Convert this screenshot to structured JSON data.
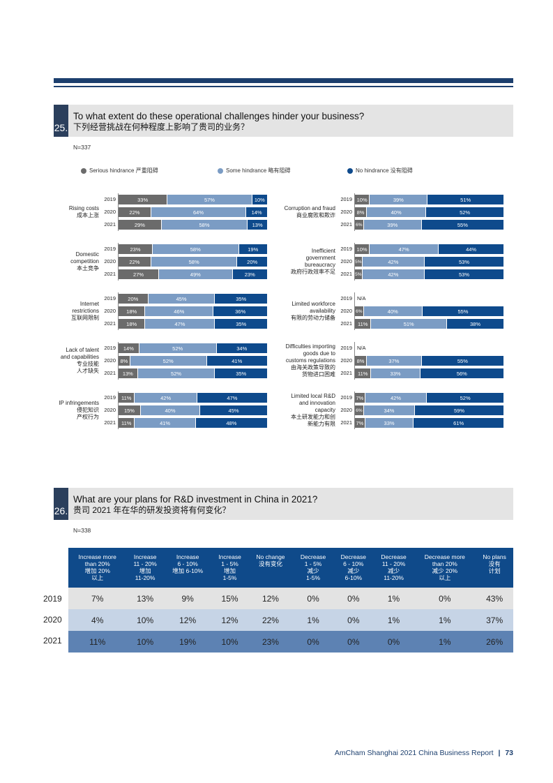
{
  "q25": {
    "number": "25.",
    "title_en": "To what extent do these operational challenges hinder your business?",
    "title_cn": "下列经营挑战在何种程度上影响了贵司的业务？",
    "n": "N=337",
    "legend": [
      {
        "label": "Serious hindrance  严重阻碍",
        "color": "#6b6b6b"
      },
      {
        "label": "Some hindrance  略有阻碍",
        "color": "#7b9cc4"
      },
      {
        "label": "No hindrance  没有阻碍",
        "color": "#0e4a8c"
      }
    ]
  },
  "chart_data": [
    {
      "type": "bar",
      "stacked": true,
      "title": "Rising costs 成本上涨",
      "categories": [
        "2019",
        "2020",
        "2021"
      ],
      "series": [
        {
          "name": "Serious hindrance",
          "values": [
            33,
            22,
            29
          ]
        },
        {
          "name": "Some hindrance",
          "values": [
            57,
            64,
            58
          ]
        },
        {
          "name": "No hindrance",
          "values": [
            10,
            14,
            13
          ]
        }
      ]
    },
    {
      "type": "bar",
      "stacked": true,
      "title": "Corruption and fraud 商业腐败和欺诈",
      "categories": [
        "2019",
        "2020",
        "2021"
      ],
      "series": [
        {
          "name": "Serious hindrance",
          "values": [
            10,
            8,
            6
          ]
        },
        {
          "name": "Some hindrance",
          "values": [
            39,
            40,
            39
          ]
        },
        {
          "name": "No hindrance",
          "values": [
            51,
            52,
            55
          ]
        }
      ]
    },
    {
      "type": "bar",
      "stacked": true,
      "title": "Domestic competition 本土竞争",
      "categories": [
        "2019",
        "2020",
        "2021"
      ],
      "series": [
        {
          "name": "Serious hindrance",
          "values": [
            23,
            22,
            27
          ]
        },
        {
          "name": "Some hindrance",
          "values": [
            58,
            58,
            49
          ]
        },
        {
          "name": "No hindrance",
          "values": [
            19,
            20,
            23
          ]
        }
      ]
    },
    {
      "type": "bar",
      "stacked": true,
      "title": "Inefficient government bureaucracy 政府行政效率不足",
      "categories": [
        "2019",
        "2020",
        "2021"
      ],
      "series": [
        {
          "name": "Serious hindrance",
          "values": [
            10,
            5,
            5
          ]
        },
        {
          "name": "Some hindrance",
          "values": [
            47,
            42,
            42
          ]
        },
        {
          "name": "No hindrance",
          "values": [
            44,
            53,
            53
          ]
        }
      ]
    },
    {
      "type": "bar",
      "stacked": true,
      "title": "Internet restrictions 互联网限制",
      "categories": [
        "2019",
        "2020",
        "2021"
      ],
      "series": [
        {
          "name": "Serious hindrance",
          "values": [
            20,
            18,
            18
          ]
        },
        {
          "name": "Some hindrance",
          "values": [
            45,
            46,
            47
          ]
        },
        {
          "name": "No hindrance",
          "values": [
            35,
            36,
            35
          ]
        }
      ]
    },
    {
      "type": "bar",
      "stacked": true,
      "title": "Limited workforce availability 有限的劳动力储备",
      "categories": [
        "2019",
        "2020",
        "2021"
      ],
      "series": [
        {
          "name": "Serious hindrance",
          "values": [
            null,
            6,
            11
          ]
        },
        {
          "name": "Some hindrance",
          "values": [
            null,
            40,
            51
          ]
        },
        {
          "name": "No hindrance",
          "values": [
            null,
            55,
            38
          ]
        }
      ]
    },
    {
      "type": "bar",
      "stacked": true,
      "title": "Lack of talent and capabilities 专业技能人才缺失",
      "categories": [
        "2019",
        "2020",
        "2021"
      ],
      "series": [
        {
          "name": "Serious hindrance",
          "values": [
            14,
            8,
            13
          ]
        },
        {
          "name": "Some hindrance",
          "values": [
            52,
            52,
            52
          ]
        },
        {
          "name": "No hindrance",
          "values": [
            34,
            41,
            35
          ]
        }
      ]
    },
    {
      "type": "bar",
      "stacked": true,
      "title": "Difficulties importing goods due to customs regulations 由海关政策导致的货物进口困难",
      "categories": [
        "2019",
        "2020",
        "2021"
      ],
      "series": [
        {
          "name": "Serious hindrance",
          "values": [
            null,
            8,
            11
          ]
        },
        {
          "name": "Some hindrance",
          "values": [
            null,
            37,
            33
          ]
        },
        {
          "name": "No hindrance",
          "values": [
            null,
            55,
            56
          ]
        }
      ]
    },
    {
      "type": "bar",
      "stacked": true,
      "title": "IP infringements 侵犯知识产权行为",
      "categories": [
        "2019",
        "2020",
        "2021"
      ],
      "series": [
        {
          "name": "Serious hindrance",
          "values": [
            11,
            15,
            11
          ]
        },
        {
          "name": "Some hindrance",
          "values": [
            42,
            40,
            41
          ]
        },
        {
          "name": "No hindrance",
          "values": [
            47,
            45,
            48
          ]
        }
      ]
    },
    {
      "type": "bar",
      "stacked": true,
      "title": "Limited local R&D and innovation capacity 本土研发能力和创新能力有限",
      "categories": [
        "2019",
        "2020",
        "2021"
      ],
      "series": [
        {
          "name": "Serious hindrance",
          "values": [
            7,
            6,
            7
          ]
        },
        {
          "name": "Some hindrance",
          "values": [
            42,
            34,
            33
          ]
        },
        {
          "name": "No hindrance",
          "values": [
            52,
            59,
            61
          ]
        }
      ]
    },
    {
      "type": "table",
      "title": "What are your plans for R&D investment in China in 2021?",
      "columns": [
        "Increase more than 20%",
        "Increase 11 - 20%",
        "Increase 6 - 10%",
        "Increase 1 - 5%",
        "No change",
        "Decrease 1 - 5%",
        "Decrease 6 - 10%",
        "Decrease 11 - 20%",
        "Decrease more than 20%",
        "No plans"
      ],
      "rows": [
        {
          "year": "2019",
          "values": [
            7,
            13,
            9,
            15,
            12,
            0,
            0,
            1,
            0,
            43
          ]
        },
        {
          "year": "2020",
          "values": [
            4,
            10,
            12,
            12,
            22,
            1,
            0,
            1,
            1,
            37
          ]
        },
        {
          "year": "2021",
          "values": [
            11,
            10,
            19,
            10,
            23,
            0,
            0,
            0,
            1,
            26
          ]
        }
      ]
    }
  ],
  "q25_charts": [
    {
      "label": "Rising costs\n成本上涨",
      "rows": [
        {
          "year": "2019",
          "segs": [
            "33%",
            "57%",
            "10%"
          ]
        },
        {
          "year": "2020",
          "segs": [
            "22%",
            "64%",
            "14%"
          ]
        },
        {
          "year": "2021",
          "segs": [
            "29%",
            "58%",
            "13%"
          ]
        }
      ]
    },
    {
      "label": "Corruption and fraud\n商业腐败和欺诈",
      "rows": [
        {
          "year": "2019",
          "segs": [
            "10%",
            "39%",
            "51%"
          ]
        },
        {
          "year": "2020",
          "segs": [
            "8%",
            "40%",
            "52%"
          ]
        },
        {
          "year": "2021",
          "segs": [
            "6%",
            "39%",
            "55%"
          ]
        }
      ]
    },
    {
      "label": "Domestic\ncompetition\n本土竞争",
      "rows": [
        {
          "year": "2019",
          "segs": [
            "23%",
            "58%",
            "19%"
          ]
        },
        {
          "year": "2020",
          "segs": [
            "22%",
            "58%",
            "20%"
          ]
        },
        {
          "year": "2021",
          "segs": [
            "27%",
            "49%",
            "23%"
          ]
        }
      ]
    },
    {
      "label": "Inefficient\ngovernment\nbureaucracy\n政府行政效率不足",
      "rows": [
        {
          "year": "2019",
          "segs": [
            "10%",
            "47%",
            "44%"
          ]
        },
        {
          "year": "2020",
          "segs": [
            "5%",
            "42%",
            "53%"
          ]
        },
        {
          "year": "2021",
          "segs": [
            "5%",
            "42%",
            "53%"
          ]
        }
      ]
    },
    {
      "label": "Internet\nrestrictions\n互联网限制",
      "rows": [
        {
          "year": "2019",
          "segs": [
            "20%",
            "45%",
            "35%"
          ]
        },
        {
          "year": "2020",
          "segs": [
            "18%",
            "46%",
            "36%"
          ]
        },
        {
          "year": "2021",
          "segs": [
            "18%",
            "47%",
            "35%"
          ]
        }
      ]
    },
    {
      "label": "Limited workforce\navailability\n有限的劳动力储备",
      "rows": [
        {
          "year": "2019",
          "na": "N/A"
        },
        {
          "year": "2020",
          "segs": [
            "6%",
            "40%",
            "55%"
          ]
        },
        {
          "year": "2021",
          "segs": [
            "11%",
            "51%",
            "38%"
          ]
        }
      ]
    },
    {
      "label": "Lack of talent\nand capabilities\n专业技能\n人才缺失",
      "rows": [
        {
          "year": "2019",
          "segs": [
            "14%",
            "52%",
            "34%"
          ]
        },
        {
          "year": "2020",
          "segs": [
            "8%",
            "52%",
            "41%"
          ]
        },
        {
          "year": "2021",
          "segs": [
            "13%",
            "52%",
            "35%"
          ]
        }
      ]
    },
    {
      "label": "Difficulties importing\ngoods due to\ncustoms regulations\n由海关政策导致的\n货物进口困难",
      "rows": [
        {
          "year": "2019",
          "na": "N/A"
        },
        {
          "year": "2020",
          "segs": [
            "8%",
            "37%",
            "55%"
          ]
        },
        {
          "year": "2021",
          "segs": [
            "11%",
            "33%",
            "56%"
          ]
        }
      ]
    },
    {
      "label": "IP infringements\n侵犯知识\n产权行为",
      "rows": [
        {
          "year": "2019",
          "segs": [
            "11%",
            "42%",
            "47%"
          ]
        },
        {
          "year": "2020",
          "segs": [
            "15%",
            "40%",
            "45%"
          ]
        },
        {
          "year": "2021",
          "segs": [
            "11%",
            "41%",
            "48%"
          ]
        }
      ]
    },
    {
      "label": "Limited local R&D\nand innovation\ncapacity\n本土研发能力和创\n新能力有限",
      "rows": [
        {
          "year": "2019",
          "segs": [
            "7%",
            "42%",
            "52%"
          ]
        },
        {
          "year": "2020",
          "segs": [
            "6%",
            "34%",
            "59%"
          ]
        },
        {
          "year": "2021",
          "segs": [
            "7%",
            "33%",
            "61%"
          ]
        }
      ]
    }
  ],
  "q26": {
    "number": "26.",
    "title_en": "What are your plans for R&D investment in China in 2021?",
    "title_cn": "贵司 2021 年在华的研发投资将有何变化？",
    "n": "N=338",
    "headers": [
      "Increase more\nthan 20%\n增加 20%\n以上",
      "Increase\n11 - 20%\n增加\n11-20%",
      "Increase\n6 - 10%\n增加 6-10%",
      "Increase\n1 - 5%\n增加\n1-5%",
      "No change\n没有变化",
      "Decrease\n1 - 5%\n减少\n1-5%",
      "Decrease\n6 - 10%\n减少\n6-10%",
      "Decrease\n11 - 20%\n减少\n11-20%",
      "Decrease more\nthan 20%\n减少 20%\n以上",
      "No plans\n没有\n计划"
    ],
    "rows": [
      {
        "year": "2019",
        "cells": [
          "7%",
          "13%",
          "9%",
          "15%",
          "12%",
          "0%",
          "0%",
          "1%",
          "0%",
          "43%"
        ]
      },
      {
        "year": "2020",
        "cells": [
          "4%",
          "10%",
          "12%",
          "12%",
          "22%",
          "1%",
          "0%",
          "1%",
          "1%",
          "37%"
        ]
      },
      {
        "year": "2021",
        "cells": [
          "11%",
          "10%",
          "19%",
          "10%",
          "23%",
          "0%",
          "0%",
          "0%",
          "1%",
          "26%"
        ]
      }
    ]
  },
  "footer": {
    "text": "AmCham Shanghai 2021 China Business Report",
    "page": "73"
  }
}
